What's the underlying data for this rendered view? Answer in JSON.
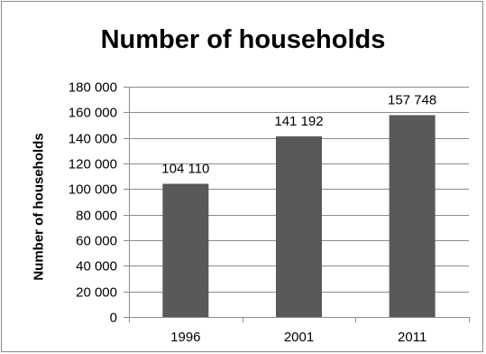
{
  "chart_data": {
    "type": "bar",
    "title": "Number of households",
    "xlabel": "",
    "ylabel": "Number of households",
    "categories": [
      "1996",
      "2001",
      "2011"
    ],
    "values": [
      104110,
      141192,
      157748
    ],
    "data_labels": [
      "104 110",
      "141 192",
      "157 748"
    ],
    "ylim": [
      0,
      180000
    ],
    "yticks": [
      0,
      20000,
      40000,
      60000,
      80000,
      100000,
      120000,
      140000,
      160000,
      180000
    ],
    "ytick_labels": [
      "0",
      "20 000",
      "40 000",
      "60 000",
      "80 000",
      "100 000",
      "120 000",
      "140 000",
      "160 000",
      "180 000"
    ],
    "grid": true,
    "legend": "none",
    "bar_color": "#595959",
    "grid_color": "#8c8c8c"
  }
}
